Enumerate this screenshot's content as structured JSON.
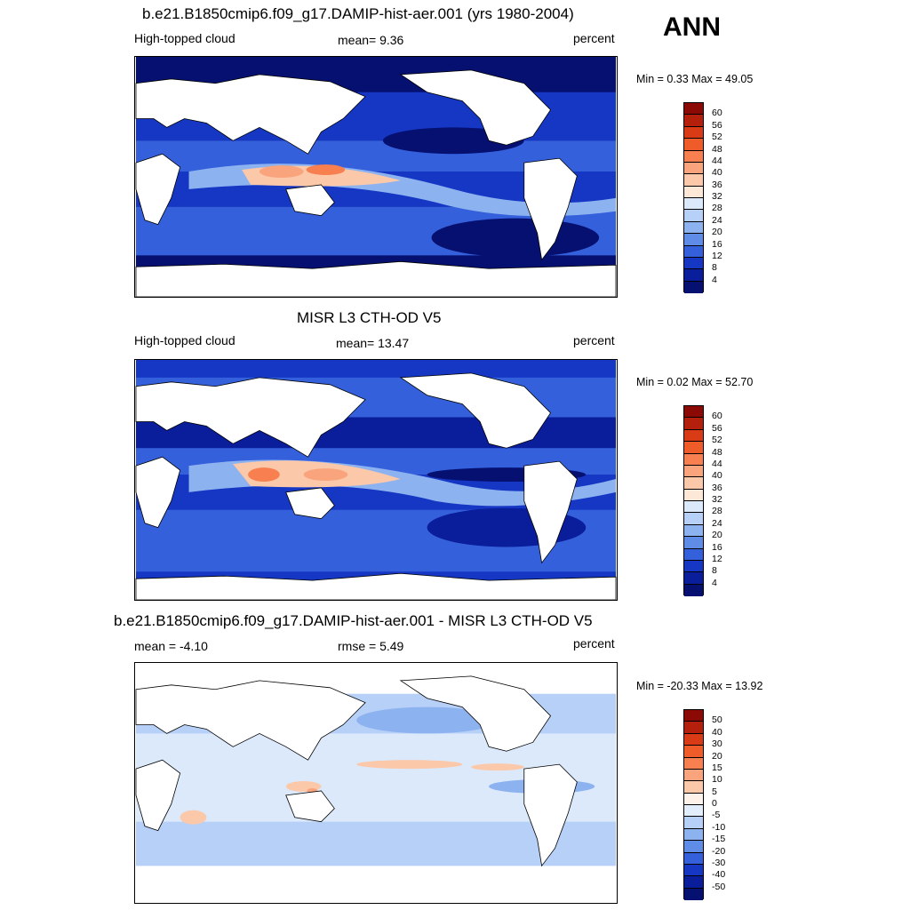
{
  "season": "ANN",
  "panels": [
    {
      "title": "b.e21.B1850cmip6.f09_g17.DAMIP-hist-aer.001 (yrs 1980-2004)",
      "left_label": "High-topped cloud",
      "center_label": "mean=   9.36",
      "right_label": "percent",
      "minmax": "Min =   0.33 Max =  49.05",
      "colorbar_levels": [
        "60",
        "56",
        "52",
        "48",
        "44",
        "40",
        "36",
        "32",
        "28",
        "24",
        "20",
        "16",
        "12",
        "8",
        "4"
      ],
      "colorbar_colors": [
        "#8b0a05",
        "#b5200d",
        "#d93b17",
        "#ef5c2a",
        "#f88050",
        "#f9a47d",
        "#fbc8a9",
        "#fde7d6",
        "#dbe9fb",
        "#b6d0f7",
        "#8db2f0",
        "#5f8ce6",
        "#3560dc",
        "#1537c4",
        "#0a1d9a",
        "#051070"
      ],
      "map_style": "model"
    },
    {
      "title": "MISR L3 CTH-OD V5",
      "left_label": "High-topped cloud",
      "center_label": "mean=  13.47",
      "right_label": "percent",
      "minmax": "Min =   0.02 Max =  52.70",
      "colorbar_levels": [
        "60",
        "56",
        "52",
        "48",
        "44",
        "40",
        "36",
        "32",
        "28",
        "24",
        "20",
        "16",
        "12",
        "8",
        "4"
      ],
      "colorbar_colors": [
        "#8b0a05",
        "#b5200d",
        "#d93b17",
        "#ef5c2a",
        "#f88050",
        "#f9a47d",
        "#fbc8a9",
        "#fde7d6",
        "#dbe9fb",
        "#b6d0f7",
        "#8db2f0",
        "#5f8ce6",
        "#3560dc",
        "#1537c4",
        "#0a1d9a",
        "#051070"
      ],
      "map_style": "obs"
    },
    {
      "title": "b.e21.B1850cmip6.f09_g17.DAMIP-hist-aer.001 - MISR L3 CTH-OD V5",
      "left_label": "mean =  -4.10",
      "center_label": "rmse =   5.49",
      "right_label": "percent",
      "minmax": "Min = -20.33 Max =  13.92",
      "colorbar_levels": [
        "50",
        "40",
        "30",
        "20",
        "15",
        "10",
        "5",
        "0",
        "-5",
        "-10",
        "-15",
        "-20",
        "-30",
        "-40",
        "-50"
      ],
      "colorbar_colors": [
        "#8b0a05",
        "#b5200d",
        "#d93b17",
        "#ef5c2a",
        "#f88050",
        "#f9a47d",
        "#fbc8a9",
        "#fdf3ea",
        "#e3eefc",
        "#b6d0f7",
        "#8db2f0",
        "#5f8ce6",
        "#3560dc",
        "#1537c4",
        "#0a1d9a",
        "#051070"
      ],
      "map_style": "diff"
    }
  ]
}
